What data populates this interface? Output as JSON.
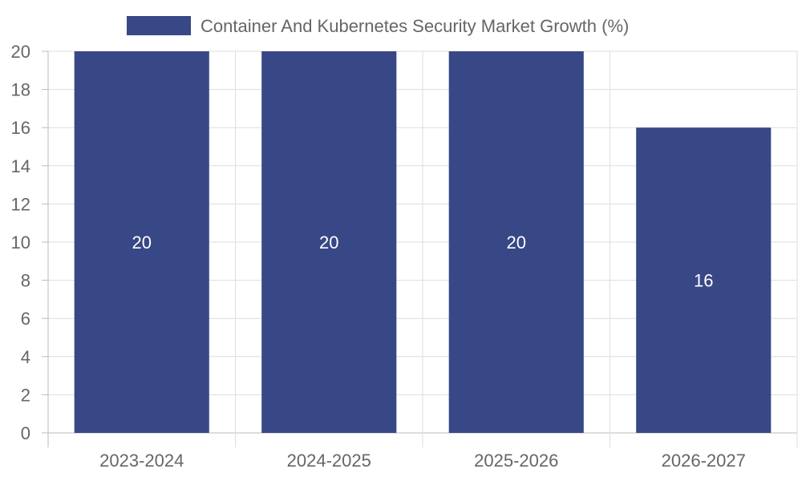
{
  "chart_data": {
    "type": "bar",
    "categories": [
      "2023-2024",
      "2024-2025",
      "2025-2026",
      "2026-2027"
    ],
    "series": [
      {
        "name": "Container And Kubernetes Security Market Growth (%)",
        "values": [
          20,
          20,
          20,
          16
        ],
        "color": "#384785"
      }
    ],
    "ylim": [
      0,
      20
    ],
    "ytick_step": 2,
    "grid": true,
    "legend_position": "top",
    "data_labels": true,
    "data_label_color": "#ffffff"
  }
}
